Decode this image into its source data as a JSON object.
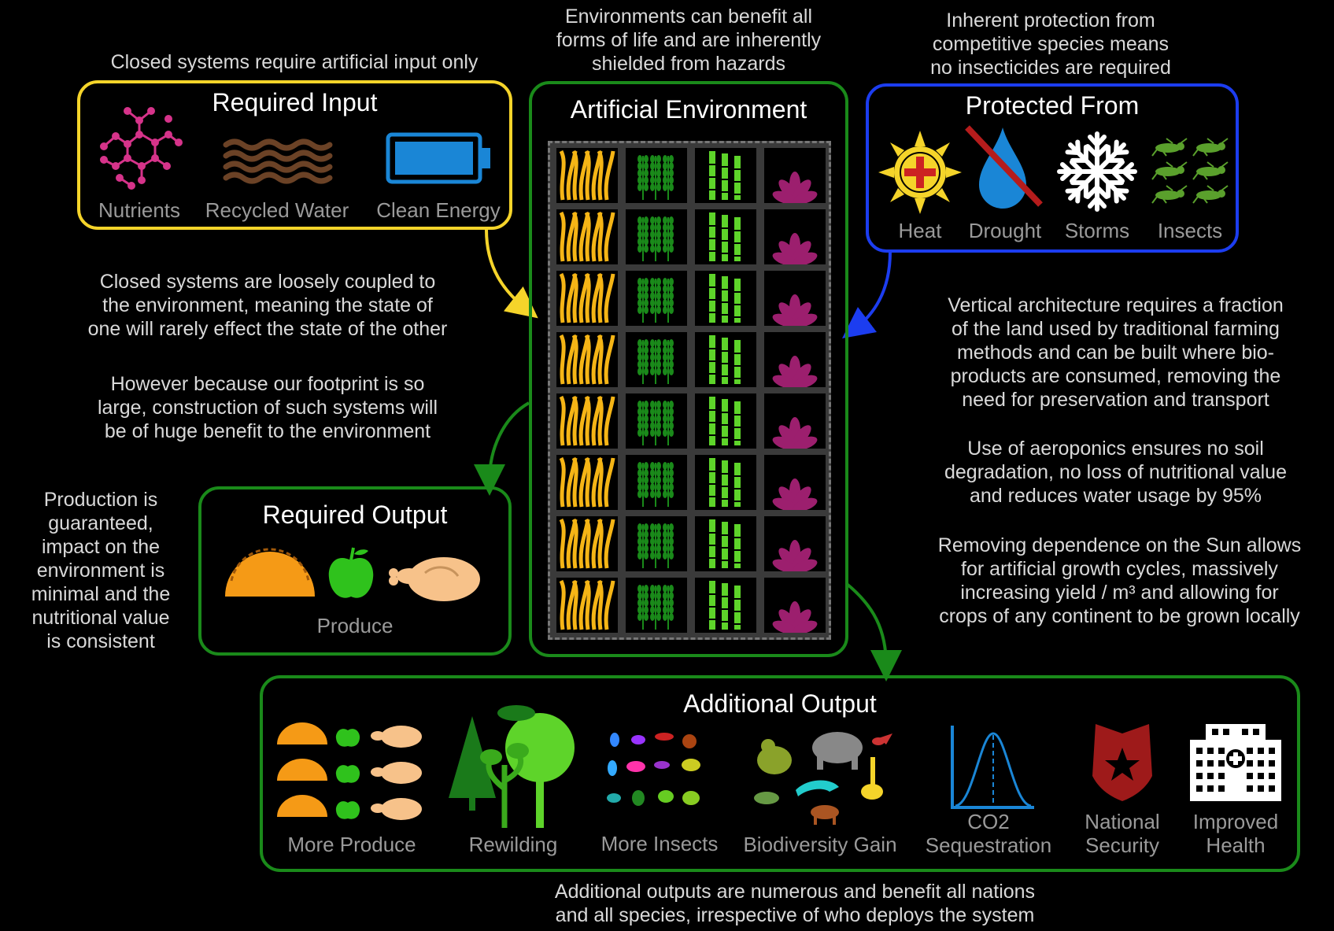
{
  "notes": {
    "closed_input": "Closed systems require artificial input only",
    "env_benefit": [
      "Environments can benefit all",
      "forms of life and are inherently",
      "shielded from hazards"
    ],
    "protection": [
      "Inherent protection from",
      "competitive species means",
      "no insecticides are required"
    ],
    "loosely_coupled": [
      "Closed systems are loosely coupled to",
      "the environment, meaning the state of",
      "one will rarely effect the state of the other"
    ],
    "footprint": [
      "However because our footprint is so",
      "large, construction of such systems will",
      "be of huge benefit to the environment"
    ],
    "production": [
      "Production is",
      "guaranteed,",
      "impact on the",
      "environment is",
      "minimal and the",
      "nutritional value",
      "is consistent"
    ],
    "vertical": [
      "Vertical architecture requires a fraction",
      "of the land used by traditional farming",
      "methods and can be built where bio-",
      "products are consumed, removing the",
      "need for preservation and transport"
    ],
    "aeroponics": [
      "Use of aeroponics ensures no soil",
      "degradation, no loss of nutritional value",
      "and reduces water usage by 95%"
    ],
    "sun": [
      "Removing dependence on the Sun allows",
      "for artificial growth cycles, massively",
      "increasing yield / m³ and allowing for",
      "crops of any continent to be grown locally"
    ],
    "additional": [
      "Additional outputs are numerous and benefit all nations",
      "and all species, irrespective of who deploys the system"
    ]
  },
  "required_input": {
    "title": "Required Input",
    "items": [
      {
        "label": "Nutrients",
        "icon": "molecule-icon"
      },
      {
        "label": "Recycled Water",
        "icon": "water-waves-icon"
      },
      {
        "label": "Clean Energy",
        "icon": "battery-icon"
      }
    ]
  },
  "artificial_environment": {
    "title": "Artificial Environment",
    "rows": 8,
    "crops": [
      "wheat-straw-icon",
      "wheat-plant-icon",
      "bamboo-icon",
      "lotus-icon"
    ]
  },
  "protected_from": {
    "title": "Protected From",
    "items": [
      {
        "label": "Heat",
        "icon": "sun-heat-icon"
      },
      {
        "label": "Drought",
        "icon": "drought-drop-icon"
      },
      {
        "label": "Storms",
        "icon": "snowflake-icon"
      },
      {
        "label": "Insects",
        "icon": "grasshopper-icon"
      }
    ]
  },
  "required_output": {
    "title": "Required Output",
    "label": "Produce",
    "icons": [
      "taco-icon",
      "apple-icon",
      "chicken-icon"
    ]
  },
  "additional_output": {
    "title": "Additional Output",
    "items": [
      {
        "label": "More Produce",
        "icon": "produce-grid-icon"
      },
      {
        "label": "Rewilding",
        "icon": "trees-icon"
      },
      {
        "label": "More Insects",
        "icon": "insects-icon"
      },
      {
        "label": "Biodiversity Gain",
        "icon": "animals-icon"
      },
      {
        "label": "CO2\nSequestration",
        "icon": "bell-curve-icon"
      },
      {
        "label": "National\nSecurity",
        "icon": "police-badge-icon"
      },
      {
        "label": "Improved\nHealth",
        "icon": "hospital-icon"
      }
    ]
  },
  "colors": {
    "input_border": "#f5d42a",
    "env_border": "#1a8a1a",
    "protect_border": "#1c3df0",
    "output_border": "#1a8a1a",
    "arrow_yellow": "#f5d42a",
    "arrow_blue": "#1c3df0",
    "arrow_green": "#1a8a1a"
  }
}
